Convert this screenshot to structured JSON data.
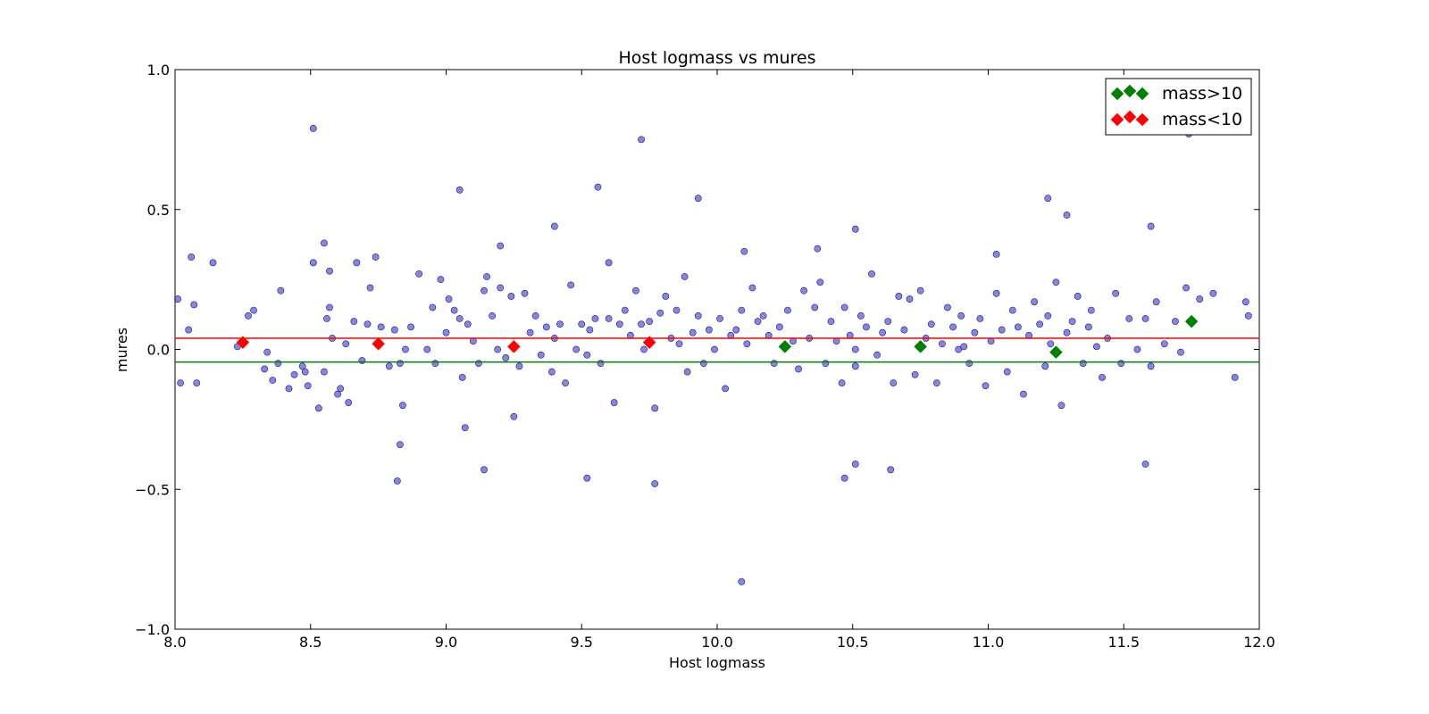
{
  "chart_data": {
    "type": "scatter",
    "title": "Host logmass vs mures",
    "xlabel": "Host logmass",
    "ylabel": "mures",
    "xlim": [
      8.0,
      12.0
    ],
    "ylim": [
      -1.0,
      1.0
    ],
    "x_ticks": [
      "8.0",
      "8.5",
      "9.0",
      "9.5",
      "10.0",
      "10.5",
      "11.0",
      "11.5",
      "12.0"
    ],
    "y_ticks": [
      "1.0",
      "0.5",
      "0.0",
      "−0.5",
      "−1.0"
    ],
    "grid": false,
    "legend_position": "top-right",
    "colors": {
      "points": "#3b3bcf",
      "high_mass": "#008000",
      "low_mass": "#ff0000"
    },
    "series": [
      {
        "name": "mass>10",
        "marker": "diamond",
        "x": [
          10.25,
          10.75,
          11.25,
          11.75
        ],
        "y": [
          0.01,
          0.01,
          -0.01,
          0.1
        ]
      },
      {
        "name": "mass<10",
        "marker": "diamond",
        "x": [
          8.25,
          8.75,
          9.25,
          9.75
        ],
        "y": [
          0.025,
          0.02,
          0.01,
          0.025
        ]
      }
    ],
    "reference_lines": [
      {
        "series": "mass<10",
        "y": 0.04
      },
      {
        "series": "mass>10",
        "y": -0.045
      }
    ],
    "scatter_points": {
      "x": [
        8.01,
        8.02,
        8.05,
        8.06,
        8.07,
        8.08,
        8.14,
        8.23,
        8.27,
        8.29,
        8.33,
        8.34,
        8.36,
        8.38,
        8.39,
        8.42,
        8.44,
        8.47,
        8.48,
        8.49,
        8.51,
        8.53,
        8.55,
        8.56,
        8.57,
        8.58,
        8.6,
        8.61,
        8.63,
        8.64,
        8.66,
        8.67,
        8.69,
        8.71,
        8.72,
        8.74,
        8.76,
        8.79,
        8.81,
        8.83,
        8.84,
        8.85,
        8.87,
        8.9,
        8.93,
        8.95,
        8.96,
        8.98,
        9.0,
        9.01,
        9.03,
        9.05,
        9.06,
        9.07,
        9.08,
        9.1,
        9.12,
        9.14,
        9.15,
        9.17,
        9.19,
        9.2,
        9.22,
        9.24,
        9.25,
        9.27,
        9.29,
        9.31,
        9.33,
        9.35,
        9.37,
        9.39,
        9.4,
        9.42,
        9.44,
        9.46,
        9.48,
        9.5,
        9.52,
        9.53,
        9.55,
        9.57,
        9.6,
        9.62,
        9.64,
        9.66,
        9.68,
        9.7,
        9.72,
        9.73,
        9.75,
        9.77,
        9.79,
        9.81,
        9.83,
        9.85,
        9.86,
        9.88,
        9.89,
        9.91,
        9.93,
        9.95,
        9.97,
        9.99,
        10.01,
        10.03,
        10.05,
        10.07,
        10.09,
        10.11,
        10.13,
        10.15,
        10.17,
        10.19,
        10.21,
        10.23,
        10.26,
        10.28,
        10.3,
        10.32,
        10.34,
        10.36,
        10.38,
        10.4,
        10.42,
        10.44,
        10.46,
        10.47,
        10.49,
        10.51,
        10.51,
        10.53,
        10.55,
        10.57,
        10.59,
        10.61,
        10.63,
        10.65,
        10.67,
        10.69,
        10.71,
        10.73,
        10.75,
        10.77,
        10.79,
        10.81,
        10.83,
        10.85,
        10.87,
        10.89,
        10.9,
        10.91,
        10.93,
        10.95,
        10.97,
        10.99,
        11.01,
        11.03,
        11.05,
        11.07,
        11.09,
        11.11,
        11.13,
        11.15,
        11.17,
        11.19,
        11.21,
        11.22,
        11.23,
        11.25,
        11.27,
        11.29,
        11.31,
        11.33,
        11.35,
        11.37,
        11.38,
        11.4,
        11.42,
        11.44,
        11.47,
        11.49,
        11.52,
        11.55,
        11.58,
        11.6,
        11.62,
        11.65,
        11.69,
        11.71,
        11.73,
        11.78,
        11.83,
        11.91,
        11.95,
        11.96,
        9.05,
        9.56,
        9.72,
        9.93,
        10.51,
        11.22,
        11.6,
        11.29,
        10.51,
        8.51,
        8.82,
        8.83,
        9.14,
        9.52,
        9.77,
        10.47,
        11.58,
        10.09,
        10.64,
        8.55,
        9.4,
        10.37,
        9.6,
        11.03,
        9.2,
        8.57,
        10.1,
        11.74
      ],
      "y": [
        0.18,
        -0.12,
        0.07,
        0.33,
        0.16,
        -0.12,
        0.31,
        0.01,
        0.12,
        0.14,
        -0.07,
        -0.01,
        -0.11,
        -0.05,
        0.21,
        -0.14,
        -0.09,
        -0.06,
        -0.08,
        -0.13,
        0.31,
        -0.21,
        -0.08,
        0.11,
        0.15,
        0.04,
        -0.16,
        -0.14,
        0.02,
        -0.19,
        0.1,
        0.31,
        -0.04,
        0.09,
        0.22,
        0.33,
        0.08,
        -0.06,
        0.07,
        -0.05,
        -0.2,
        0.0,
        0.08,
        0.27,
        0.0,
        0.15,
        -0.05,
        0.25,
        0.06,
        0.18,
        0.14,
        0.11,
        -0.1,
        -0.28,
        0.09,
        0.03,
        -0.05,
        0.21,
        0.26,
        0.12,
        0.0,
        0.22,
        -0.03,
        0.19,
        -0.24,
        -0.06,
        0.2,
        0.06,
        0.12,
        -0.02,
        0.08,
        -0.08,
        0.04,
        0.09,
        -0.12,
        0.23,
        0.0,
        0.09,
        -0.02,
        0.07,
        0.11,
        -0.05,
        0.11,
        -0.19,
        0.09,
        0.14,
        0.05,
        0.21,
        0.09,
        0.0,
        0.1,
        -0.21,
        0.13,
        0.19,
        0.04,
        0.14,
        0.02,
        0.26,
        -0.08,
        0.06,
        0.12,
        -0.05,
        0.07,
        0.0,
        0.11,
        -0.14,
        0.05,
        0.07,
        0.14,
        0.02,
        0.22,
        0.1,
        0.12,
        0.05,
        -0.05,
        0.08,
        0.14,
        0.03,
        -0.07,
        0.21,
        0.04,
        0.15,
        0.24,
        -0.05,
        0.1,
        0.03,
        -0.12,
        0.15,
        0.05,
        0.0,
        -0.06,
        0.12,
        0.08,
        0.27,
        -0.02,
        0.06,
        0.1,
        -0.12,
        0.19,
        0.07,
        0.18,
        -0.09,
        0.21,
        0.04,
        0.09,
        -0.12,
        0.02,
        0.15,
        0.08,
        0.0,
        0.12,
        0.01,
        -0.05,
        0.06,
        0.11,
        -0.13,
        0.03,
        0.2,
        0.07,
        -0.08,
        0.14,
        0.08,
        -0.16,
        0.05,
        0.17,
        0.09,
        -0.06,
        0.12,
        0.02,
        0.24,
        -0.2,
        0.06,
        0.1,
        0.19,
        -0.05,
        0.08,
        0.14,
        0.01,
        -0.1,
        0.04,
        0.2,
        -0.05,
        0.11,
        0.0,
        0.11,
        -0.06,
        0.17,
        0.02,
        0.1,
        -0.01,
        0.22,
        0.18,
        0.2,
        -0.1,
        0.17,
        0.12,
        0.57,
        0.58,
        0.75,
        0.54,
        0.43,
        0.54,
        0.44,
        0.48,
        -0.41,
        0.79,
        -0.47,
        -0.34,
        -0.43,
        -0.46,
        -0.48,
        -0.46,
        -0.41,
        -0.83,
        -0.43,
        0.38,
        0.44,
        0.36,
        0.31,
        0.34,
        0.37,
        0.28,
        0.35,
        0.77
      ]
    }
  }
}
